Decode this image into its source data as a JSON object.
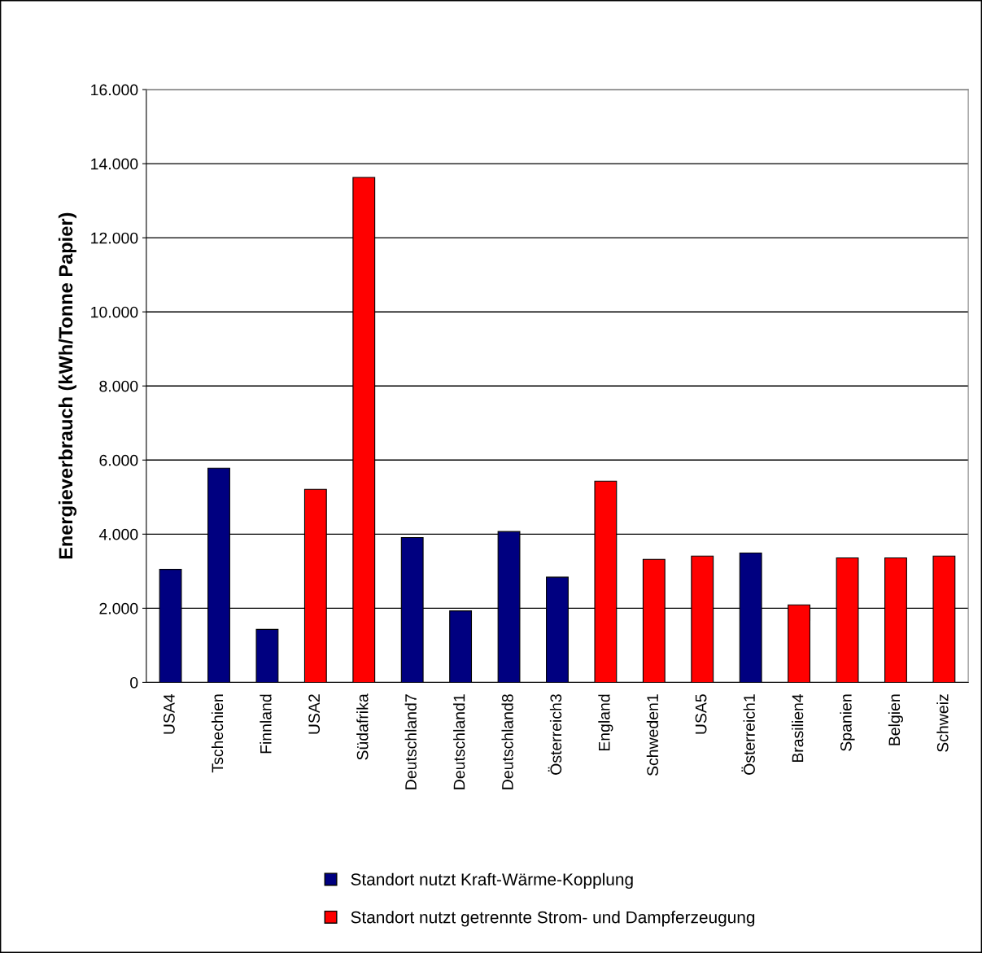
{
  "chart_data": {
    "type": "bar",
    "ylabel": "Energieverbrauch (kWh/Tonne Papier)",
    "categories": [
      "USA4",
      "Tschechien",
      "Finnland",
      "USA2",
      "Südafrika",
      "Deutschland7",
      "Deutschland1",
      "Deutschland8",
      "Österreich3",
      "England",
      "Schweden1",
      "USA5",
      "Österreich1",
      "Brasilien4",
      "Spanien",
      "Belgien",
      "Schweiz"
    ],
    "stacked": true,
    "series": [
      {
        "name": "Standort nutzt Kraft-Wärme-Kopplung",
        "color": "#000080",
        "values": [
          3050,
          5780,
          1430,
          null,
          null,
          3910,
          1930,
          4070,
          2840,
          null,
          null,
          null,
          3490,
          null,
          null,
          null,
          null
        ]
      },
      {
        "name": "Standort nutzt getrennte Strom- und Dampferzeugung",
        "color": "#ff0000",
        "values": [
          null,
          null,
          null,
          5210,
          13630,
          null,
          null,
          null,
          null,
          5430,
          3320,
          3410,
          null,
          2090,
          3360,
          3360,
          3410
        ]
      }
    ],
    "ylim": [
      0,
      16000
    ],
    "yticks": [
      0,
      {
        "value": 2000,
        "label": "2.000"
      },
      {
        "value": 4000,
        "label": "4.000"
      },
      {
        "value": 6000,
        "label": "6.000"
      },
      {
        "value": 8000,
        "label": "8.000"
      },
      {
        "value": 10000,
        "label": "10.000"
      },
      {
        "value": 12000,
        "label": "12.000"
      },
      {
        "value": 14000,
        "label": "14.000"
      },
      {
        "value": 16000,
        "label": "16.000"
      }
    ],
    "grid": "y",
    "legend": "bottom"
  }
}
